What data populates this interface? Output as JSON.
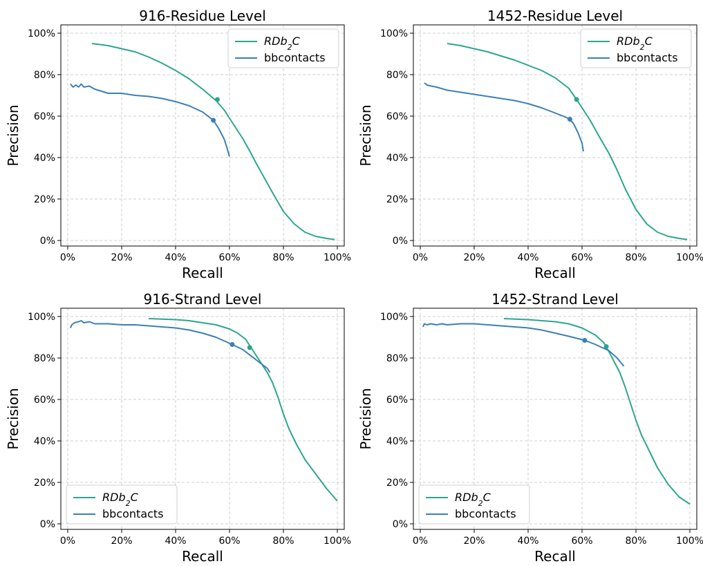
{
  "colors": {
    "rdb2c": "#2ca58d",
    "bbcontacts": "#3a7fb8",
    "grid": "#cfcfcf",
    "frame": "#000000"
  },
  "chart_data": [
    {
      "type": "line",
      "title": "916-Residue Level",
      "xlabel": "Recall",
      "ylabel": "Precision",
      "xlim": [
        0,
        100
      ],
      "ylim": [
        0,
        100
      ],
      "xticks": [
        "0%",
        "20%",
        "40%",
        "60%",
        "80%",
        "100%"
      ],
      "yticks": [
        "0%",
        "20%",
        "40%",
        "60%",
        "80%",
        "100%"
      ],
      "grid": true,
      "legend_position": "top-right",
      "series": [
        {
          "name": "RDb2C",
          "name_base": "RDb",
          "name_sub": "2",
          "name_tail": "C",
          "italic": true,
          "x": [
            9,
            15,
            20,
            25,
            30,
            35,
            40,
            45,
            50,
            55,
            58,
            60,
            62,
            65,
            68,
            70,
            73,
            76,
            80,
            84,
            88,
            92,
            96,
            99
          ],
          "y": [
            95,
            94,
            92.5,
            91,
            88.5,
            85.5,
            82,
            78,
            73,
            67.5,
            63,
            59,
            55,
            49,
            42,
            37,
            30,
            23,
            14,
            8,
            4,
            2,
            1,
            0.5
          ],
          "marker": {
            "x": 55.5,
            "y": 68
          }
        },
        {
          "name": "bbcontacts",
          "italic": false,
          "x": [
            1,
            2,
            3,
            4,
            5,
            6,
            8,
            10,
            15,
            20,
            25,
            30,
            35,
            40,
            45,
            50,
            54,
            56,
            58,
            59,
            60
          ],
          "y": [
            75.5,
            74,
            75,
            74,
            75.5,
            74,
            74.5,
            73,
            71,
            71,
            70,
            69.5,
            68.5,
            67,
            65,
            62,
            58,
            54,
            49,
            45,
            40.5
          ],
          "marker": {
            "x": 54,
            "y": 58
          }
        }
      ]
    },
    {
      "type": "line",
      "title": "1452-Residue Level",
      "xlabel": "Recall",
      "ylabel": "Precision",
      "xlim": [
        0,
        100
      ],
      "ylim": [
        0,
        100
      ],
      "xticks": [
        "0%",
        "20%",
        "40%",
        "60%",
        "80%",
        "100%"
      ],
      "yticks": [
        "0%",
        "20%",
        "40%",
        "60%",
        "80%",
        "100%"
      ],
      "grid": true,
      "legend_position": "top-right",
      "series": [
        {
          "name": "RDb2C",
          "name_base": "RDb",
          "name_sub": "2",
          "name_tail": "C",
          "italic": true,
          "x": [
            10,
            15,
            20,
            25,
            30,
            35,
            40,
            45,
            50,
            55,
            58,
            60,
            63,
            66,
            70,
            73,
            76,
            80,
            84,
            88,
            92,
            96,
            99
          ],
          "y": [
            95,
            94,
            92.5,
            91,
            89,
            87,
            84.5,
            82,
            78.5,
            73.5,
            68,
            64,
            58,
            51,
            42,
            34,
            25,
            15,
            8,
            4,
            2,
            1,
            0.5
          ],
          "marker": {
            "x": 58,
            "y": 68
          }
        },
        {
          "name": "bbcontacts",
          "italic": false,
          "x": [
            1.5,
            2.5,
            4,
            6,
            10,
            15,
            20,
            25,
            30,
            35,
            40,
            45,
            50,
            53,
            55.5,
            57,
            58.5,
            60,
            60.5
          ],
          "y": [
            76,
            75,
            74.5,
            74,
            72.5,
            71.5,
            70.5,
            69.5,
            68.5,
            67.5,
            66,
            64,
            61.5,
            60,
            58.5,
            56,
            52,
            47,
            43
          ],
          "marker": {
            "x": 55.5,
            "y": 58.5
          }
        }
      ]
    },
    {
      "type": "line",
      "title": "916-Strand Level",
      "xlabel": "Recall",
      "ylabel": "Precision",
      "xlim": [
        0,
        100
      ],
      "ylim": [
        0,
        100
      ],
      "xticks": [
        "0%",
        "20%",
        "40%",
        "60%",
        "80%",
        "100%"
      ],
      "yticks": [
        "0%",
        "20%",
        "40%",
        "60%",
        "80%",
        "100%"
      ],
      "grid": true,
      "legend_position": "bottom-left",
      "series": [
        {
          "name": "RDb2C",
          "name_base": "RDb",
          "name_sub": "2",
          "name_tail": "C",
          "italic": true,
          "x": [
            30,
            40,
            45,
            50,
            55,
            60,
            63,
            66,
            68,
            70,
            72,
            74,
            76,
            78,
            80,
            82,
            85,
            88,
            92,
            96,
            100
          ],
          "y": [
            99,
            98.5,
            98,
            97,
            96,
            94,
            92,
            89,
            85,
            81,
            77,
            73,
            68,
            61,
            53,
            46,
            38,
            31,
            24,
            17,
            11
          ],
          "marker": {
            "x": 67.5,
            "y": 85
          }
        },
        {
          "name": "bbcontacts",
          "italic": false,
          "x": [
            1,
            1.5,
            2.5,
            4,
            5,
            6,
            8,
            10,
            15,
            20,
            25,
            30,
            35,
            40,
            45,
            50,
            55,
            61,
            65,
            70,
            74,
            75
          ],
          "y": [
            94.5,
            96,
            97,
            97.5,
            98,
            97,
            97.5,
            96.5,
            96.5,
            96,
            96,
            95.5,
            95,
            94.5,
            93.5,
            92,
            90,
            86.5,
            84,
            79,
            75,
            73
          ],
          "marker": {
            "x": 61,
            "y": 86.5
          }
        }
      ]
    },
    {
      "type": "line",
      "title": "1452-Strand Level",
      "xlabel": "Recall",
      "ylabel": "Precision",
      "xlim": [
        0,
        100
      ],
      "ylim": [
        0,
        100
      ],
      "xticks": [
        "0%",
        "20%",
        "40%",
        "60%",
        "80%",
        "100%"
      ],
      "yticks": [
        "0%",
        "20%",
        "40%",
        "60%",
        "80%",
        "100%"
      ],
      "grid": true,
      "legend_position": "bottom-left",
      "series": [
        {
          "name": "RDb2C",
          "name_base": "RDb",
          "name_sub": "2",
          "name_tail": "C",
          "italic": true,
          "x": [
            31,
            40,
            45,
            50,
            55,
            60,
            65,
            68,
            70,
            72,
            74,
            76,
            78,
            80,
            82,
            85,
            88,
            92,
            96,
            100
          ],
          "y": [
            99,
            98.5,
            98,
            97.5,
            96.5,
            94.5,
            91,
            87.5,
            83,
            78,
            73,
            66,
            58,
            50,
            43,
            35,
            27,
            19,
            13,
            9.5
          ],
          "marker": {
            "x": 69,
            "y": 85.5
          }
        },
        {
          "name": "bbcontacts",
          "italic": false,
          "x": [
            1,
            1.5,
            2.5,
            4,
            6,
            8,
            10,
            15,
            20,
            25,
            30,
            35,
            40,
            45,
            50,
            55,
            61,
            65,
            70,
            73,
            75.5
          ],
          "y": [
            95,
            96.5,
            96,
            96.5,
            96,
            96.5,
            96,
            96.5,
            96.5,
            96,
            95.5,
            95,
            94.5,
            93.5,
            92,
            90.5,
            88.5,
            86.5,
            83.5,
            80,
            76
          ],
          "marker": {
            "x": 61,
            "y": 88.5
          }
        }
      ]
    }
  ]
}
